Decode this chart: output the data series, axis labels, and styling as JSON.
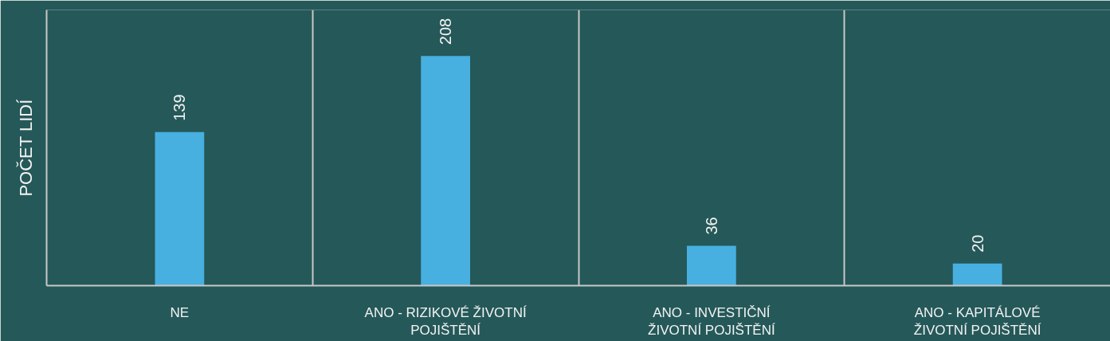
{
  "chart_data": {
    "type": "bar",
    "ylabel": "POČET LIDÍ",
    "categories": [
      "NE",
      "ANO - RIZIKOVÉ ŽIVOTNÍ POJIŠTĚNÍ",
      "ANO - INVESTIČNÍ ŽIVOTNÍ POJIŠTĚNÍ",
      "ANO - KAPITÁLOVÉ ŽIVOTNÍ POJIŠTĚNÍ"
    ],
    "values": [
      139,
      208,
      36,
      20
    ],
    "color": "#47b0e0",
    "data_labels": true,
    "grid": "x",
    "tick_labels": "x"
  }
}
